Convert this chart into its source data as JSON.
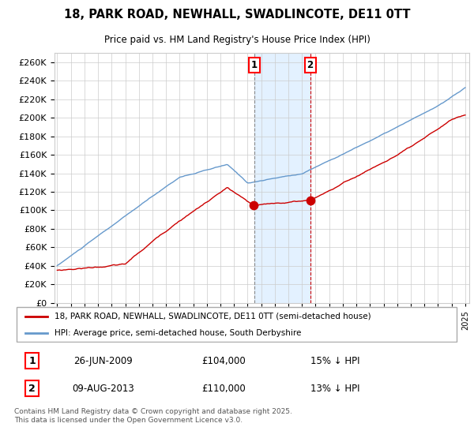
{
  "title_line1": "18, PARK ROAD, NEWHALL, SWADLINCOTE, DE11 0TT",
  "title_line2": "Price paid vs. HM Land Registry's House Price Index (HPI)",
  "legend_red": "18, PARK ROAD, NEWHALL, SWADLINCOTE, DE11 0TT (semi-detached house)",
  "legend_blue": "HPI: Average price, semi-detached house, South Derbyshire",
  "transaction1_date": "26-JUN-2009",
  "transaction1_price": "£104,000",
  "transaction1_note": "15% ↓ HPI",
  "transaction2_date": "09-AUG-2013",
  "transaction2_price": "£110,000",
  "transaction2_note": "13% ↓ HPI",
  "footer": "Contains HM Land Registry data © Crown copyright and database right 2025.\nThis data is licensed under the Open Government Licence v3.0.",
  "red_color": "#cc0000",
  "blue_color": "#6699cc",
  "grid_color": "#cccccc",
  "bg_color": "#ffffff",
  "shade_color": "#ddeeff",
  "vline1_color": "#888888",
  "vline2_color": "#cc0000",
  "ylim": [
    0,
    270000
  ],
  "ytick_step": 20000,
  "x_start_year": 1995,
  "x_end_year": 2025,
  "transaction1_x": 2009.487,
  "transaction2_x": 2013.604
}
